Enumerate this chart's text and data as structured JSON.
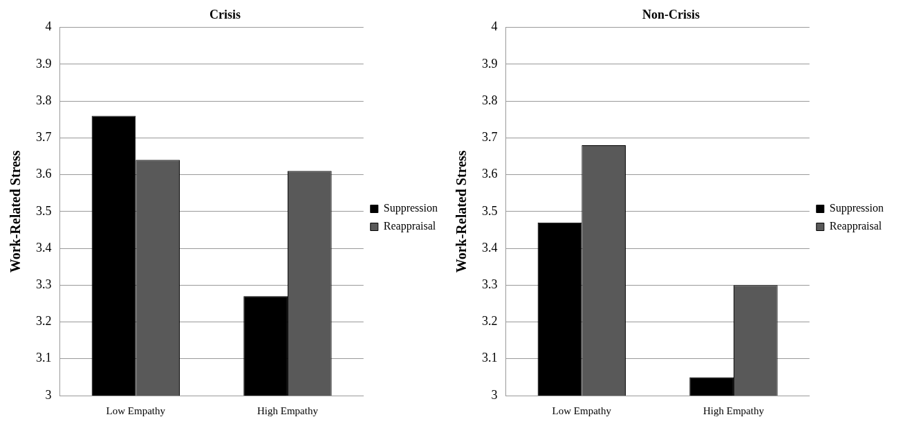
{
  "chart_data": [
    {
      "type": "bar",
      "title": "Crisis",
      "ylabel": "Work-Related Stress",
      "categories": [
        "Low Empathy",
        "High Empathy"
      ],
      "series": [
        {
          "name": "Suppression",
          "color": "#000000",
          "values": [
            3.76,
            3.27
          ]
        },
        {
          "name": "Reappraisal",
          "color": "#595959",
          "values": [
            3.64,
            3.61
          ]
        }
      ],
      "ylim": [
        3,
        4
      ],
      "yticks": [
        3,
        3.1,
        3.2,
        3.3,
        3.4,
        3.5,
        3.6,
        3.7,
        3.8,
        3.9,
        4
      ],
      "grid": "y",
      "legend": "right"
    },
    {
      "type": "bar",
      "title": "Non-Crisis",
      "ylabel": "Work-Related Stress",
      "categories": [
        "Low Empathy",
        "High Empathy"
      ],
      "series": [
        {
          "name": "Suppression",
          "color": "#000000",
          "values": [
            3.47,
            3.05
          ]
        },
        {
          "name": "Reappraisal",
          "color": "#595959",
          "values": [
            3.68,
            3.3
          ]
        }
      ],
      "ylim": [
        3,
        4
      ],
      "yticks": [
        3,
        3.1,
        3.2,
        3.3,
        3.4,
        3.5,
        3.6,
        3.7,
        3.8,
        3.9,
        4
      ],
      "grid": "y",
      "legend": "right"
    }
  ]
}
